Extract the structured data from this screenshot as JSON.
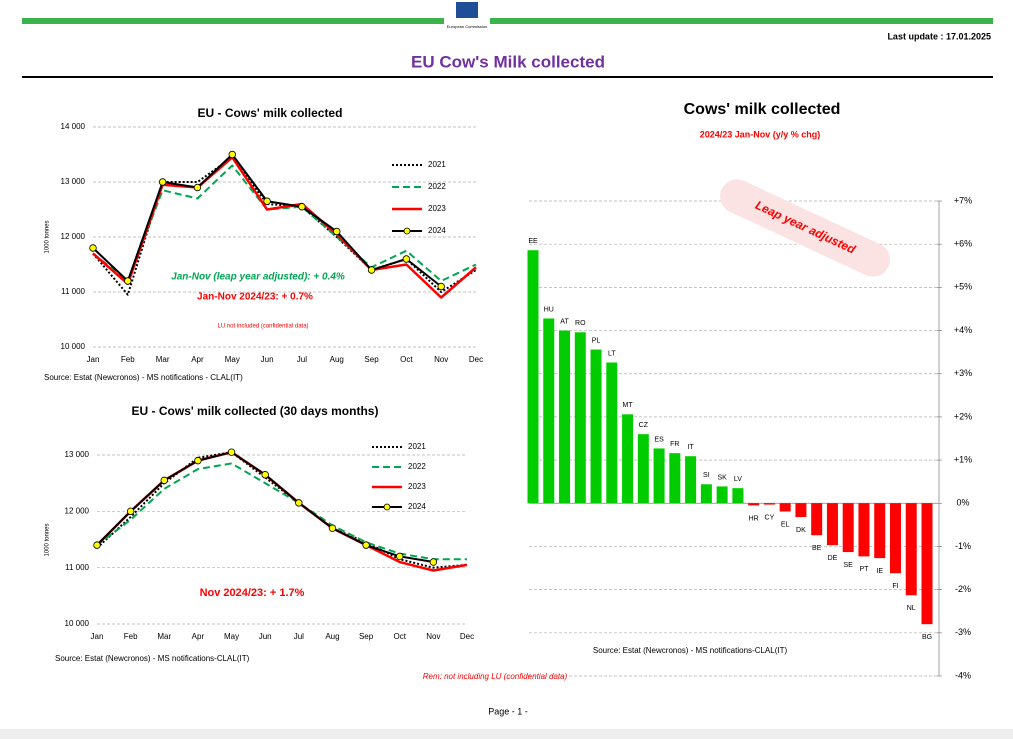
{
  "header": {
    "logo_text": "European Commission",
    "last_update": "Last update : 17.01.2025",
    "title": "EU Cow's Milk collected"
  },
  "chart_data": [
    {
      "type": "line",
      "title": "EU - Cows' milk collected",
      "y_label": "1000 tonnes",
      "source": "Source: Estat (Newcronos) - MS notifications - CLAL(IT)",
      "categories": [
        "Jan",
        "Feb",
        "Mar",
        "Apr",
        "May",
        "Jun",
        "Jul",
        "Aug",
        "Sep",
        "Oct",
        "Nov",
        "Dec"
      ],
      "ylim": [
        10000,
        14000
      ],
      "yticks": [
        {
          "value": 10000,
          "label": "10 000"
        },
        {
          "value": 11000,
          "label": "11 000"
        },
        {
          "value": 12000,
          "label": "12 000"
        },
        {
          "value": 13000,
          "label": "13 000"
        },
        {
          "value": 14000,
          "label": "14 000"
        }
      ],
      "grid": true,
      "series": [
        {
          "name": "2021",
          "color": "#000000",
          "style": "dotted",
          "values": [
            11700,
            10950,
            13000,
            13000,
            13450,
            12600,
            12550,
            12000,
            11400,
            11600,
            11000,
            11400
          ]
        },
        {
          "name": "2022",
          "color": "#00a651",
          "style": "dashed",
          "values": [
            11700,
            11200,
            12850,
            12700,
            13300,
            12500,
            12550,
            12000,
            11450,
            11750,
            11200,
            11500
          ]
        },
        {
          "name": "2023",
          "color": "#ff0000",
          "style": "solid",
          "values": [
            11700,
            11150,
            12950,
            12900,
            13450,
            12500,
            12600,
            12050,
            11400,
            11500,
            10900,
            11450
          ]
        },
        {
          "name": "2024",
          "color": "#000000",
          "style": "marker",
          "values": [
            11800,
            11200,
            13000,
            12900,
            13500,
            12650,
            12550,
            12100,
            11400,
            11600,
            11100,
            null
          ]
        }
      ],
      "annotations": [
        {
          "text": "Jan-Nov (leap year adjusted): + 0.4%",
          "color": "#00a651",
          "italic": true
        },
        {
          "text": "Jan-Nov 2024/23: + 0.7%",
          "color": "#ff0000",
          "italic": false
        },
        {
          "text": "LU not included (confidential data)",
          "color": "#ff0000",
          "italic": false
        }
      ]
    },
    {
      "type": "line",
      "title": "EU - Cows' milk collected (30 days months)",
      "y_label": "1000 tonnes",
      "source": "Source: Estat (Newcronos) - MS notifications-CLAL(IT)",
      "categories": [
        "Jan",
        "Feb",
        "Mar",
        "Apr",
        "May",
        "Jun",
        "Jul",
        "Aug",
        "Sep",
        "Oct",
        "Nov",
        "Dec"
      ],
      "ylim": [
        10000,
        13000
      ],
      "yticks": [
        {
          "value": 10000,
          "label": "10 000"
        },
        {
          "value": 11000,
          "label": "11 000"
        },
        {
          "value": 12000,
          "label": "12 000"
        },
        {
          "value": 13000,
          "label": "13 000"
        }
      ],
      "grid": true,
      "series": [
        {
          "name": "2021",
          "color": "#000000",
          "style": "dotted",
          "values": [
            11350,
            11900,
            12500,
            12950,
            13050,
            12600,
            12150,
            11700,
            11450,
            11150,
            11000,
            11050
          ]
        },
        {
          "name": "2022",
          "color": "#00a651",
          "style": "dashed",
          "values": [
            11400,
            11850,
            12400,
            12750,
            12850,
            12500,
            12150,
            11750,
            11450,
            11250,
            11150,
            11150
          ]
        },
        {
          "name": "2023",
          "color": "#ff0000",
          "style": "solid",
          "values": [
            11400,
            12000,
            12550,
            12900,
            13050,
            12650,
            12150,
            11700,
            11400,
            11100,
            10950,
            11050
          ]
        },
        {
          "name": "2024",
          "color": "#000000",
          "style": "marker",
          "values": [
            11400,
            12000,
            12550,
            12900,
            13050,
            12650,
            12150,
            11700,
            11400,
            11200,
            11100,
            null
          ]
        }
      ],
      "annotations": [
        {
          "text": "Nov 2024/23: + 1.7%",
          "color": "#ff0000",
          "italic": false
        }
      ]
    },
    {
      "type": "bar",
      "title": "Cows' milk collected",
      "subtitle": "2024/23  Jan-Nov  (y/y % chg)",
      "source": "Source: Estat (Newcronos) - MS notifications-CLAL(IT)",
      "categories": [
        "EE",
        "HU",
        "AT",
        "RO",
        "PL",
        "LT",
        "MT",
        "CZ",
        "ES",
        "FR",
        "IT",
        "SI",
        "SK",
        "LV",
        "HR",
        "CY",
        "EL",
        "DK",
        "BE",
        "DE",
        "SE",
        "PT",
        "IE",
        "FI",
        "NL",
        "BG"
      ],
      "values": [
        5.86,
        4.28,
        4.0,
        3.96,
        3.56,
        3.26,
        2.06,
        1.6,
        1.27,
        1.16,
        1.09,
        0.44,
        0.39,
        0.35,
        -0.05,
        -0.03,
        -0.19,
        -0.32,
        -0.74,
        -0.97,
        -1.13,
        -1.23,
        -1.27,
        -1.62,
        -2.13,
        -2.8
      ],
      "positive_color": "#00cc00",
      "negative_color": "#ff0000",
      "ylim": [
        -4,
        7
      ],
      "yticks": [
        {
          "value": -4,
          "label": "-4%"
        },
        {
          "value": -3,
          "label": "-3%"
        },
        {
          "value": -2,
          "label": "-2%"
        },
        {
          "value": -1,
          "label": "-1%"
        },
        {
          "value": 0,
          "label": "0%"
        },
        {
          "value": 1,
          "label": "+1%"
        },
        {
          "value": 2,
          "label": "+2%"
        },
        {
          "value": 3,
          "label": "+3%"
        },
        {
          "value": 4,
          "label": "+4%"
        },
        {
          "value": 5,
          "label": "+5%"
        },
        {
          "value": 6,
          "label": "+6%"
        },
        {
          "value": 7,
          "label": "+7%"
        }
      ],
      "grid": true,
      "annotations": [
        {
          "text": "Leap year adjusted",
          "color": "#ff0000",
          "italic": true
        }
      ]
    }
  ],
  "footer": {
    "remark": "Rem: not including LU (confidential data)",
    "page": "Page - 1 -"
  }
}
